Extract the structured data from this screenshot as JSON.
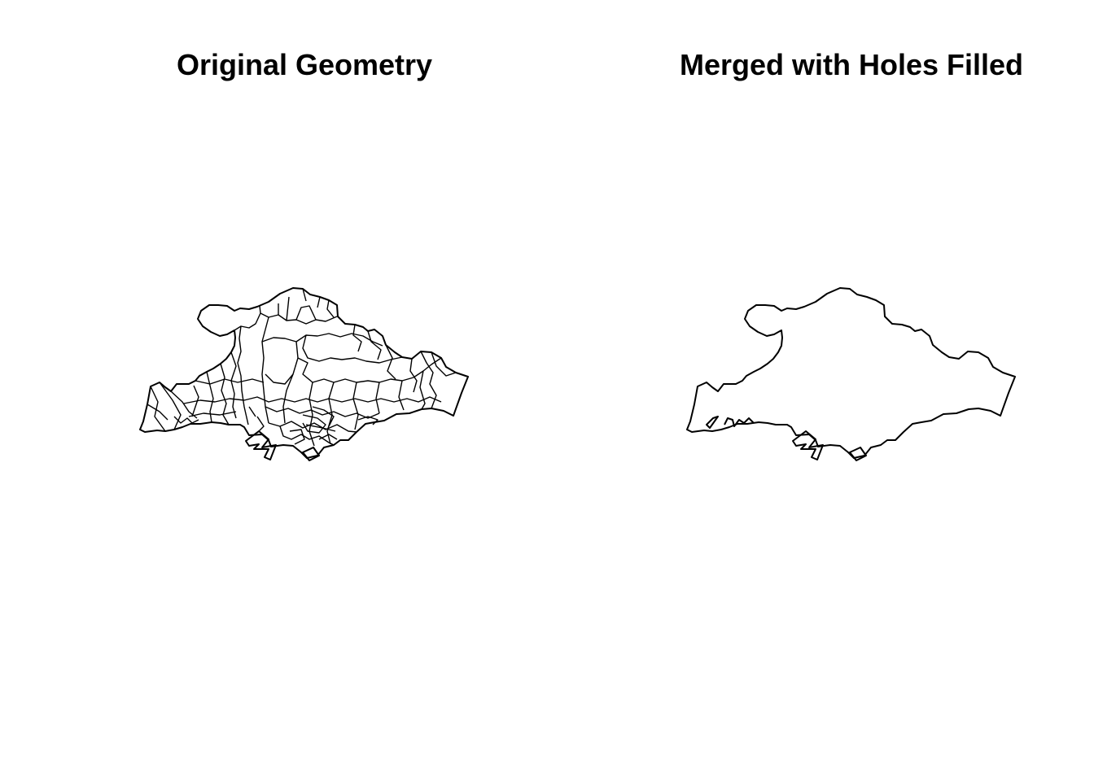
{
  "panels": [
    {
      "title": "Original Geometry",
      "style": "subdivided"
    },
    {
      "title": "Merged with Holes Filled",
      "style": "outline"
    }
  ],
  "colors": {
    "background": "#ffffff",
    "stroke": "#000000"
  }
}
